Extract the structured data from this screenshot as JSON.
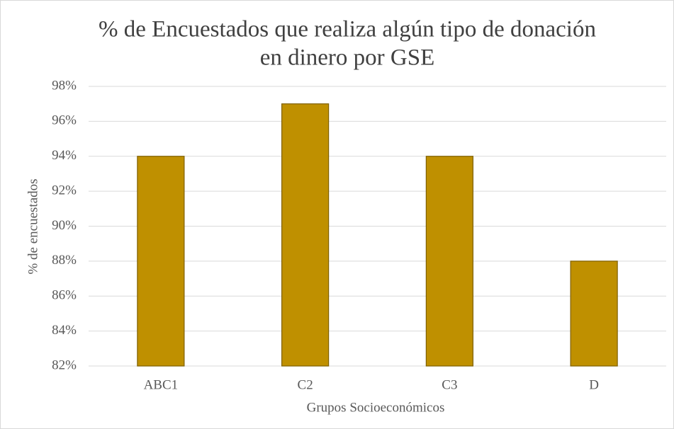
{
  "chart_data": {
    "type": "bar",
    "title": [
      "% de Encuestados que realiza algún tipo de donación",
      "en dinero por GSE"
    ],
    "x_label": "Grupos Socioeconómicos",
    "y_label": "% de encuestados",
    "categories": [
      "ABC1",
      "C2",
      "C3",
      "D"
    ],
    "values": [
      94,
      97,
      94,
      88
    ],
    "color": "#bf9000",
    "edge_color": "#7f6000",
    "ylim": [
      82,
      98
    ],
    "yticks": [
      {
        "value": 82,
        "label": "82%"
      },
      {
        "value": 84,
        "label": "84%"
      },
      {
        "value": 86,
        "label": "86%"
      },
      {
        "value": 88,
        "label": "88%"
      },
      {
        "value": 90,
        "label": "90%"
      },
      {
        "value": 92,
        "label": "92%"
      },
      {
        "value": 94,
        "label": "94%"
      },
      {
        "value": 96,
        "label": "96%"
      },
      {
        "value": 98,
        "label": "98%"
      }
    ],
    "grid": true
  }
}
